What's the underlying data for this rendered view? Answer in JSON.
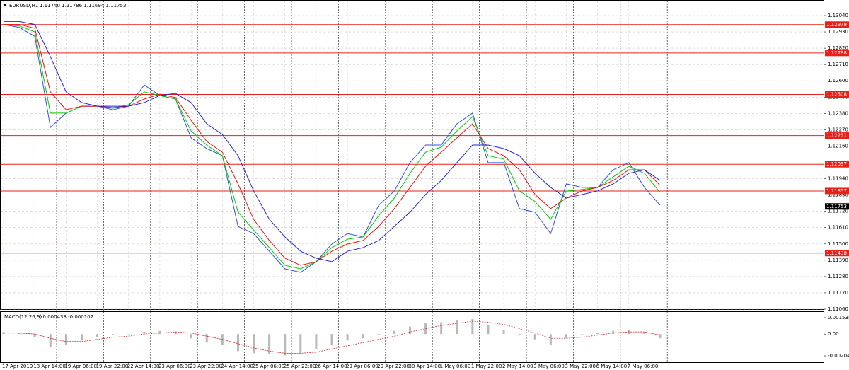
{
  "chart_data": [
    {
      "type": "line",
      "title": "EURUSD,H1",
      "subtitle": "1.11740 1.11786 1.11694 1.11753",
      "grid": true,
      "log_scale": false,
      "xlim": [
        0,
        420
      ],
      "ylim": [
        1.1106,
        1.1304
      ],
      "yticks": [
        {
          "value": 1.1304,
          "label": "1.13040"
        },
        {
          "value": 1.1293,
          "label": "1.12930"
        },
        {
          "value": 1.1282,
          "label": "1.12820"
        },
        {
          "value": 1.1271,
          "label": "1.12710"
        },
        {
          "value": 1.126,
          "label": "1.12600"
        },
        {
          "value": 1.1249,
          "label": "1.12490"
        },
        {
          "value": 1.1238,
          "label": "1.12380"
        },
        {
          "value": 1.1227,
          "label": "1.12270"
        },
        {
          "value": 1.1216,
          "label": "1.12160"
        },
        {
          "value": 1.1194,
          "label": "1.11940"
        },
        {
          "value": 1.1183,
          "label": "1.11830"
        },
        {
          "value": 1.1172,
          "label": "1.11720"
        },
        {
          "value": 1.1161,
          "label": "1.11610"
        },
        {
          "value": 1.115,
          "label": "1.11500"
        },
        {
          "value": 1.1139,
          "label": "1.11390"
        },
        {
          "value": 1.1128,
          "label": "1.11280"
        },
        {
          "value": 1.1117,
          "label": "1.11170"
        },
        {
          "value": 1.1106,
          "label": "1.11060"
        }
      ],
      "levels": [
        1.12979,
        1.12788,
        1.12508,
        1.12231,
        1.12037,
        1.11857,
        1.11438
      ],
      "level_color": "#e8201a",
      "current_price": 1.11753,
      "x": [
        0,
        8,
        16,
        24,
        32,
        40,
        48,
        56,
        64,
        72,
        80,
        88,
        96,
        104,
        112,
        120,
        128,
        136,
        144,
        152,
        160,
        168,
        176,
        184,
        192,
        200,
        208,
        216,
        224,
        232,
        240,
        248,
        256,
        264,
        272,
        280,
        288,
        296,
        304,
        312,
        320,
        328,
        336
      ],
      "series": [
        {
          "color": "#3050e0",
          "values": [
            1.1298,
            1.1296,
            1.129,
            1.12286,
            1.12382,
            1.12429,
            1.12429,
            1.12405,
            1.12429,
            1.12572,
            1.12501,
            1.12477,
            1.12215,
            1.12143,
            1.12095,
            1.11618,
            1.1157,
            1.11451,
            1.11332,
            1.11308,
            1.1138,
            1.11499,
            1.1157,
            1.11547,
            1.11761,
            1.11857,
            1.12048,
            1.12167,
            1.12167,
            1.1231,
            1.12382,
            1.12048,
            1.12048,
            1.11738,
            1.11714,
            1.1157,
            1.11905,
            1.11881,
            1.11881,
            1.12,
            1.12048,
            1.11881,
            1.11761
          ]
        },
        {
          "color": "#00cc00",
          "values": [
            1.1298,
            1.1297,
            1.1293,
            1.12382,
            1.12382,
            1.12429,
            1.12429,
            1.12415,
            1.12439,
            1.12525,
            1.12501,
            1.12477,
            1.12262,
            1.12167,
            1.12095,
            1.11714,
            1.11594,
            1.11475,
            1.11356,
            1.11332,
            1.1138,
            1.11475,
            1.11532,
            1.11547,
            1.1169,
            1.11809,
            1.11976,
            1.12119,
            1.12153,
            1.12262,
            1.12358,
            1.12095,
            1.12072,
            1.11857,
            1.11786,
            1.11666,
            1.11857,
            1.11867,
            1.11881,
            1.11952,
            1.12024,
            1.11976,
            1.11847
          ]
        },
        {
          "color": "#ee1111",
          "values": [
            1.1298,
            1.1298,
            1.12954,
            1.12525,
            1.12405,
            1.12429,
            1.12429,
            1.1242,
            1.12429,
            1.12477,
            1.1251,
            1.12487,
            1.12334,
            1.12191,
            1.12119,
            1.11905,
            1.11666,
            1.11523,
            1.11404,
            1.11356,
            1.1138,
            1.11451,
            1.11499,
            1.11523,
            1.11618,
            1.11738,
            1.11881,
            1.12024,
            1.12119,
            1.12215,
            1.1231,
            1.12143,
            1.12095,
            1.12,
            1.11833,
            1.11738,
            1.11809,
            1.11857,
            1.11881,
            1.11928,
            1.12,
            1.12,
            1.11895
          ]
        },
        {
          "color": "#2222dd",
          "values": [
            1.13,
            1.13,
            1.1298,
            1.12763,
            1.12525,
            1.12453,
            1.12429,
            1.12429,
            1.12429,
            1.12453,
            1.12501,
            1.12515,
            1.12453,
            1.1231,
            1.12238,
            1.12095,
            1.11857,
            1.11666,
            1.11547,
            1.11451,
            1.11404,
            1.1138,
            1.11451,
            1.11475,
            1.11523,
            1.11618,
            1.11714,
            1.11833,
            1.11928,
            1.12048,
            1.12167,
            1.12167,
            1.12143,
            1.12095,
            1.11976,
            1.11881,
            1.11809,
            1.11833,
            1.11857,
            1.11905,
            1.11976,
            1.12,
            1.11928
          ]
        }
      ]
    },
    {
      "type": "macd",
      "title": "MACD(12,26,9)",
      "subtitle": "-0.000433 -0.000102",
      "xlim": [
        0,
        420
      ],
      "ylim": [
        -0.002041,
        0.001535
      ],
      "yticks": [
        0.001535,
        {
          "value": 0,
          "label": "0.00"
        },
        -0.002041
      ],
      "xticks": [
        {
          "value": 0,
          "label": "17 Apr 2019"
        },
        {
          "value": 16,
          "label": "18 Apr 14:00"
        },
        {
          "value": 32,
          "label": "19 Apr 06:00"
        },
        {
          "value": 48,
          "label": "19 Apr 22:00"
        },
        {
          "value": 64,
          "label": "22 Apr 14:00"
        },
        {
          "value": 80,
          "label": "23 Apr 06:00"
        },
        {
          "value": 96,
          "label": "23 Apr 22:00"
        },
        {
          "value": 112,
          "label": "24 Apr 14:00"
        },
        {
          "value": 128,
          "label": "25 Apr 06:00"
        },
        {
          "value": 144,
          "label": "25 Apr 22:00"
        },
        {
          "value": 160,
          "label": "26 Apr 14:00"
        },
        {
          "value": 176,
          "label": "29 Apr 06:00"
        },
        {
          "value": 192,
          "label": "29 Apr 22:00"
        },
        {
          "value": 208,
          "label": "30 Apr 14:00"
        },
        {
          "value": 224,
          "label": "1 May 06:00"
        },
        {
          "value": 240,
          "label": "1 May 22:00"
        },
        {
          "value": 256,
          "label": "2 May 14:00"
        },
        {
          "value": 272,
          "label": "3 May 06:00"
        },
        {
          "value": 288,
          "label": "3 May 22:00"
        },
        {
          "value": 304,
          "label": "6 May 14:00"
        },
        {
          "value": 320,
          "label": "7 May 06:00"
        }
      ],
      "x": [
        0,
        8,
        16,
        24,
        32,
        40,
        48,
        56,
        64,
        72,
        80,
        88,
        96,
        104,
        112,
        120,
        128,
        136,
        144,
        152,
        160,
        168,
        176,
        184,
        192,
        200,
        208,
        216,
        224,
        232,
        240,
        248,
        256,
        264,
        272,
        280,
        288,
        296,
        304,
        312,
        320,
        328,
        336
      ],
      "series": [
        {
          "color": "#b8b8b8",
          "values": [
            0.0002,
            0.0001,
            -0.0003,
            -0.0012,
            -0.001,
            -0.0006,
            -0.0003,
            -0.0001,
            0,
            0.0002,
            0.0003,
            0.0002,
            -0.0004,
            -0.0008,
            -0.001,
            -0.0016,
            -0.0018,
            -0.0019,
            -0.002,
            -0.0018,
            -0.0014,
            -0.001,
            -0.0006,
            -0.0004,
            -0.0001,
            0.0003,
            0.0007,
            0.001,
            0.0011,
            0.0013,
            0.0014,
            0.0008,
            0.0004,
            -0.0001,
            -0.0005,
            -0.001,
            -0.0004,
            0,
            0.0001,
            0.0003,
            0.0004,
            0.0002,
            -0.0004
          ]
        },
        {
          "color": "#e02020",
          "values": [
            0.0001,
            0.0001,
            0,
            -0.0004,
            -0.0007,
            -0.0007,
            -0.0005,
            -0.0003,
            -0.0002,
            0,
            0.0001,
            0.0002,
            0.0001,
            -0.0002,
            -0.0005,
            -0.0009,
            -0.0013,
            -0.0016,
            -0.0018,
            -0.0018,
            -0.0017,
            -0.0014,
            -0.0011,
            -0.0008,
            -0.0005,
            -0.0002,
            0.0002,
            0.0005,
            0.0008,
            0.001,
            0.0012,
            0.0011,
            0.0009,
            0.0005,
            0.0001,
            -0.0004,
            -0.0004,
            -0.0003,
            -0.0001,
            0.0001,
            0.0002,
            0.0002,
            -0.0001
          ]
        }
      ]
    }
  ]
}
